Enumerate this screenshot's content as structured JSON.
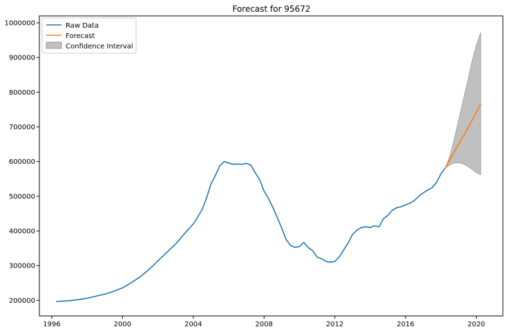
{
  "chart_data": {
    "type": "line",
    "title": "Forecast for 95672",
    "xlabel": "",
    "ylabel": "",
    "xlim": [
      1995.3,
      2021.5
    ],
    "ylim": [
      155000,
      1020000
    ],
    "x_ticks": [
      1996,
      2000,
      2004,
      2008,
      2012,
      2016,
      2020
    ],
    "x_tick_labels": [
      "1996",
      "2000",
      "2004",
      "2008",
      "2012",
      "2016",
      "2020"
    ],
    "y_ticks": [
      200000,
      300000,
      400000,
      500000,
      600000,
      700000,
      800000,
      900000,
      1000000
    ],
    "y_tick_labels": [
      "200000",
      "300000",
      "400000",
      "500000",
      "600000",
      "700000",
      "800000",
      "900000",
      "1000000"
    ],
    "grid": false,
    "legend_position": "top-left",
    "colors": {
      "raw": "#1f77b4",
      "forecast": "#ff7f0e",
      "ci_fill": "#c0c0c0",
      "ci_edge": "#9a9a9a"
    },
    "series": [
      {
        "name": "Raw Data",
        "x": [
          1996.25,
          1996.5,
          1997.0,
          1997.5,
          1998.0,
          1998.5,
          1999.0,
          1999.5,
          2000.0,
          2000.5,
          2001.0,
          2001.5,
          2002.0,
          2002.5,
          2003.0,
          2003.5,
          2004.0,
          2004.25,
          2004.5,
          2004.75,
          2005.0,
          2005.25,
          2005.5,
          2005.75,
          2006.0,
          2006.25,
          2006.5,
          2006.75,
          2007.0,
          2007.25,
          2007.5,
          2007.75,
          2008.0,
          2008.25,
          2008.5,
          2008.75,
          2009.0,
          2009.25,
          2009.5,
          2009.75,
          2010.0,
          2010.25,
          2010.5,
          2010.75,
          2011.0,
          2011.25,
          2011.5,
          2011.75,
          2012.0,
          2012.25,
          2012.5,
          2012.75,
          2013.0,
          2013.25,
          2013.5,
          2013.75,
          2014.0,
          2014.25,
          2014.5,
          2014.75,
          2015.0,
          2015.25,
          2015.5,
          2015.75,
          2016.0,
          2016.25,
          2016.5,
          2016.75,
          2017.0,
          2017.25,
          2017.5,
          2017.75,
          2018.0,
          2018.25
        ],
        "y": [
          197000,
          197500,
          199000,
          202000,
          206000,
          212000,
          218000,
          226000,
          236000,
          251000,
          268000,
          289000,
          314000,
          338000,
          362000,
          392000,
          420000,
          440000,
          462000,
          495000,
          535000,
          560000,
          588000,
          600000,
          596000,
          592000,
          593000,
          592000,
          595000,
          590000,
          568000,
          548000,
          515000,
          493000,
          468000,
          438000,
          408000,
          375000,
          358000,
          353000,
          355000,
          367000,
          352000,
          343000,
          325000,
          320000,
          312000,
          310000,
          312000,
          325000,
          345000,
          365000,
          390000,
          402000,
          410000,
          412000,
          410000,
          415000,
          412000,
          435000,
          445000,
          460000,
          467000,
          470000,
          475000,
          480000,
          488000,
          500000,
          510000,
          518000,
          525000,
          540000,
          565000,
          582000
        ]
      },
      {
        "name": "Forecast",
        "x": [
          2018.25,
          2018.75,
          2019.25,
          2019.75,
          2020.25
        ],
        "y": [
          582000,
          628000,
          672000,
          718000,
          766000
        ]
      }
    ],
    "confidence_interval": {
      "name": "Confidence Interval",
      "x": [
        2018.25,
        2018.5,
        2018.75,
        2019.0,
        2019.25,
        2019.5,
        2019.75,
        2020.0,
        2020.25
      ],
      "lower": [
        582000,
        590000,
        596000,
        597000,
        593000,
        587000,
        578000,
        568000,
        562000
      ],
      "upper": [
        582000,
        615000,
        665000,
        720000,
        775000,
        830000,
        888000,
        935000,
        972000
      ]
    }
  }
}
